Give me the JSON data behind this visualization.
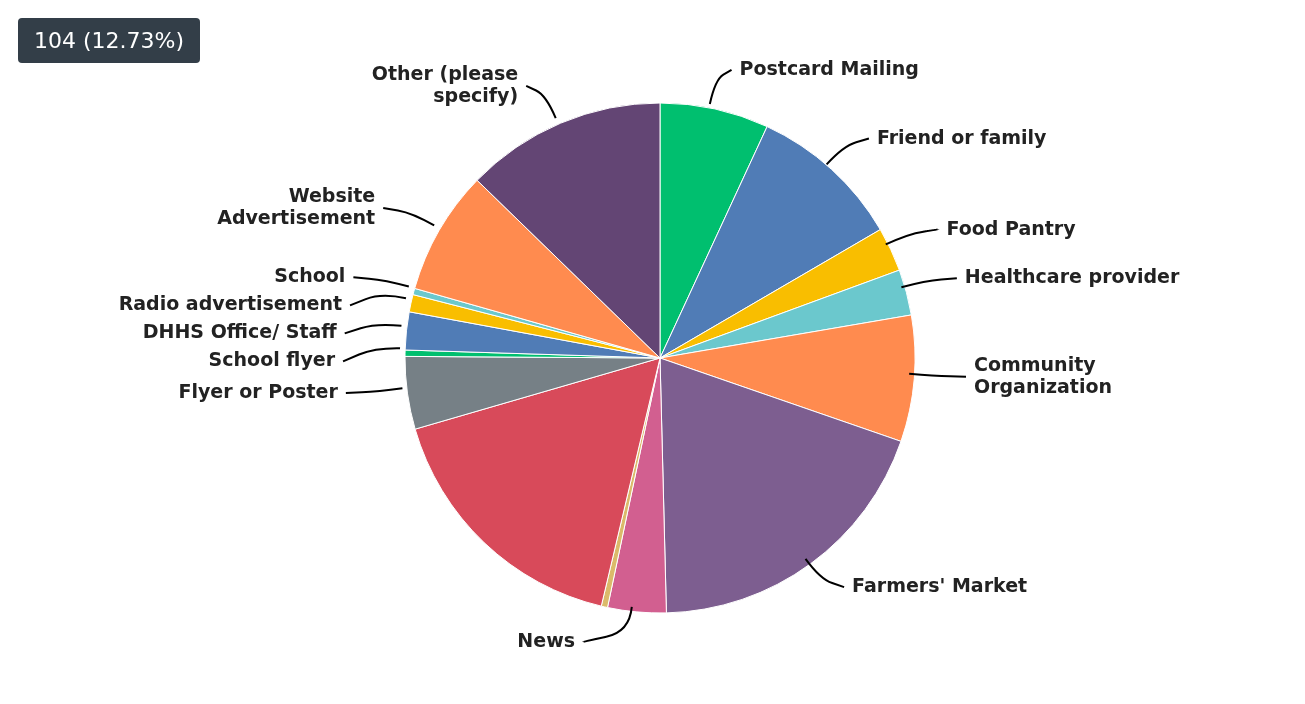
{
  "chart_data": {
    "type": "pie",
    "categories": [
      "Postcard Mailing",
      "Friend or family",
      "Food Pantry",
      "Healthcare provider",
      "Community Organization",
      "Farmers' Market",
      "News",
      null,
      null,
      "Flyer or Poster",
      "School flyer",
      "DHHS Office/ Staff",
      "Radio advertisement",
      "School",
      "Website Advertisement",
      "Other (please specify)"
    ],
    "values": [
      6.9,
      9.7,
      2.8,
      2.9,
      8.0,
      19.3,
      3.7,
      0.4,
      16.8,
      4.6,
      0.4,
      2.4,
      1.1,
      0.4,
      7.87,
      12.73
    ],
    "colors": [
      "#00bf6f",
      "#507cb6",
      "#f9be00",
      "#6bc8cd",
      "#ff8b4f",
      "#7d5e90",
      "#d25f90",
      "#dbba6a",
      "#d84a5a",
      "#768086",
      "#00bf6f",
      "#507cb6",
      "#f9be00",
      "#6bc8cd",
      "#ff8b4f",
      "#634574"
    ],
    "annotations": [
      "104 (12.73%)"
    ]
  }
}
